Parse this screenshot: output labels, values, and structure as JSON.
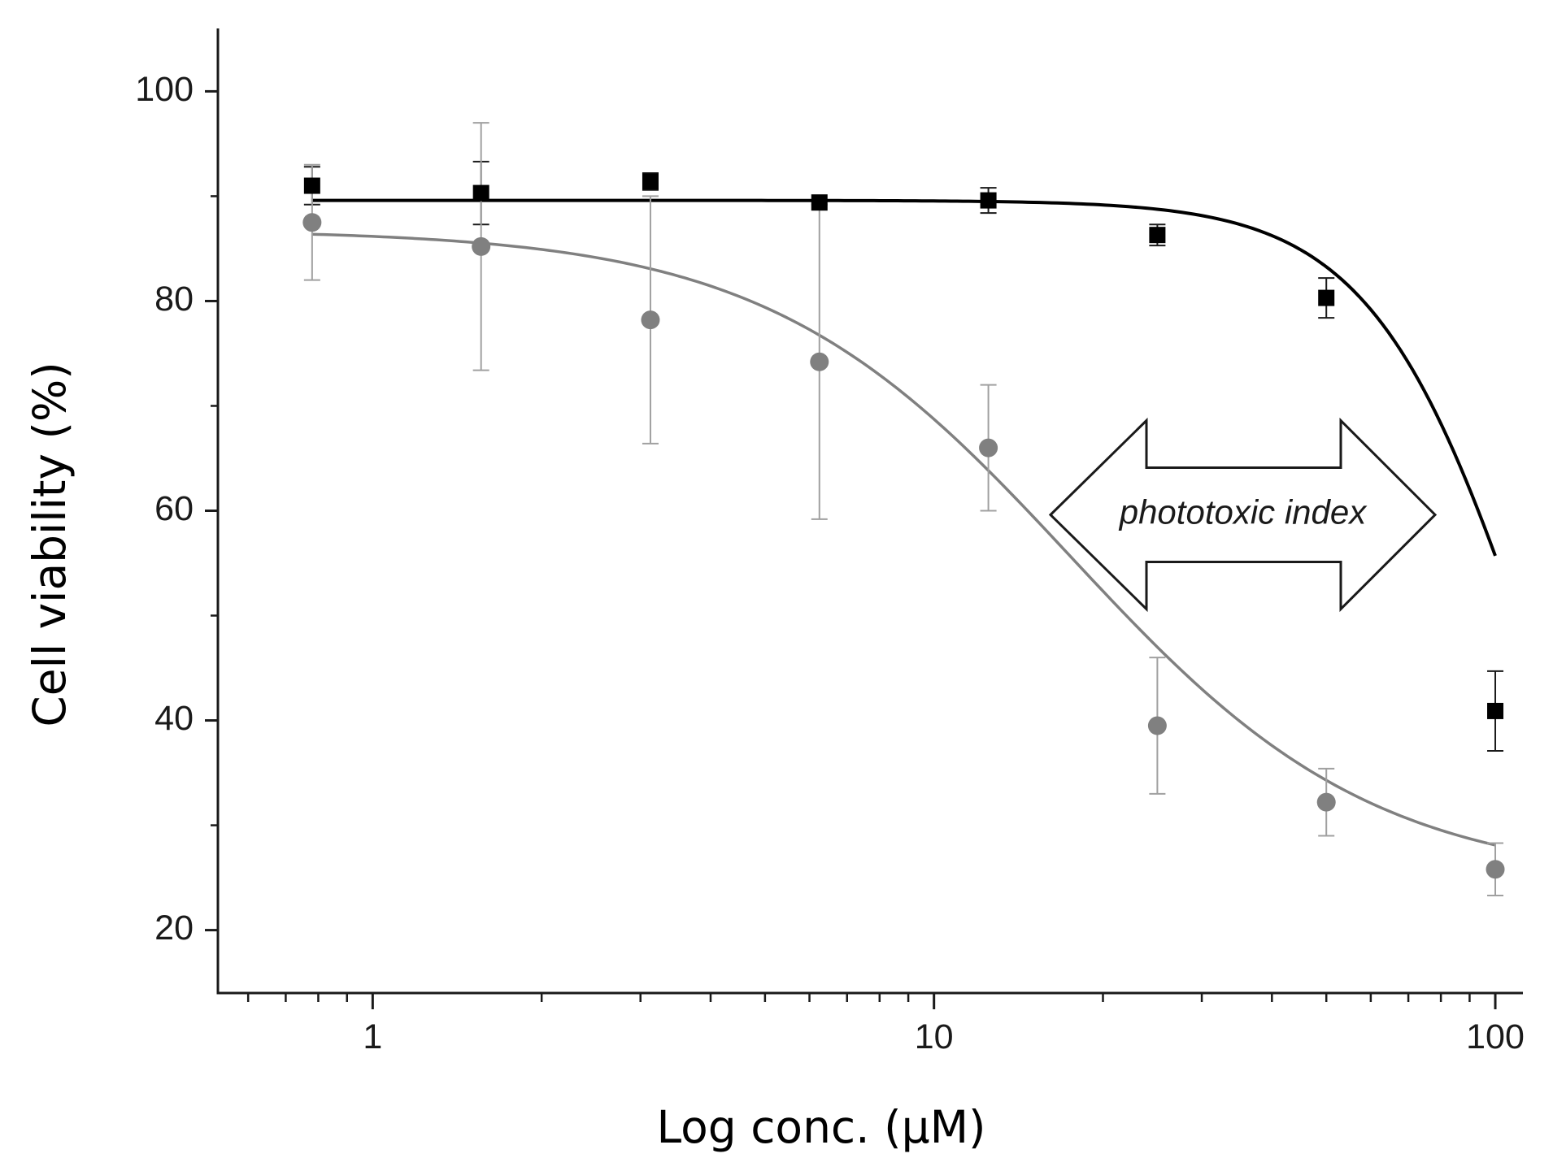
{
  "chart_data": {
    "type": "scatter",
    "x_scale": "log",
    "xlim": [
      0.53,
      112
    ],
    "ylim": [
      14,
      106
    ],
    "xlabel": "Log conc. (μM)",
    "ylabel": "Cell viability (%)",
    "x_major_ticks": [
      1,
      10,
      100
    ],
    "x_tick_labels": [
      "1",
      "10",
      "100"
    ],
    "y_major_ticks": [
      20,
      40,
      60,
      80,
      100
    ],
    "y_minor_ticks": [
      30,
      50,
      70,
      90
    ],
    "y_tick_labels": [
      "20",
      "40",
      "60",
      "80",
      "100"
    ],
    "grid": false,
    "series": [
      {
        "marker": "square",
        "color": "#000000",
        "points": [
          {
            "x": 0.78,
            "y": 91.0,
            "err": 1.8
          },
          {
            "x": 1.56,
            "y": 90.3,
            "err": 3.0
          },
          {
            "x": 3.125,
            "y": 91.4,
            "err": 0.8
          },
          {
            "x": 6.25,
            "y": 89.4,
            "err": 0.0
          },
          {
            "x": 12.5,
            "y": 89.6,
            "err": 1.2
          },
          {
            "x": 25,
            "y": 86.3,
            "err": 1.0
          },
          {
            "x": 50,
            "y": 80.3,
            "err": 1.9
          },
          {
            "x": 100,
            "y": 40.9,
            "err": 3.8
          }
        ],
        "fit": {
          "bottom": 0,
          "top": 89.6,
          "ic50": 118,
          "hill": 3.0
        }
      },
      {
        "marker": "circle",
        "color": "#808080",
        "points": [
          {
            "x": 0.78,
            "y": 87.5,
            "err": 5.5
          },
          {
            "x": 1.56,
            "y": 85.2,
            "err": 11.8
          },
          {
            "x": 3.125,
            "y": 78.2,
            "err": 11.8
          },
          {
            "x": 6.25,
            "y": 74.2,
            "err": 15.0
          },
          {
            "x": 12.5,
            "y": 66.0,
            "err": 6.0
          },
          {
            "x": 25,
            "y": 39.5,
            "err": 6.5
          },
          {
            "x": 50,
            "y": 32.2,
            "err": 3.2
          },
          {
            "x": 100,
            "y": 25.8,
            "err": 2.5
          }
        ],
        "fit": {
          "bottom": 24.5,
          "top": 86.8,
          "ic50": 17.5,
          "hill": 1.6
        }
      }
    ],
    "annotation": {
      "text": "phototoxic index",
      "shape": "double-headed arrow",
      "x_from": 12.5,
      "x_to": 100,
      "y_center": 60
    }
  }
}
